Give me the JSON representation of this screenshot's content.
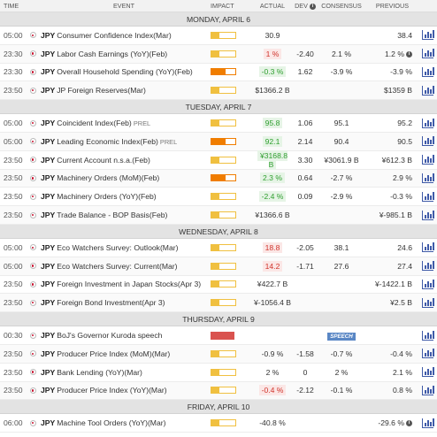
{
  "header": {
    "time": "TIME",
    "event": "EVENT",
    "impact": "IMPACT",
    "actual": "ACTUAL",
    "dev": "DEV",
    "consensus": "CONSENSUS",
    "previous": "PREVIOUS"
  },
  "days": [
    {
      "label": "MONDAY, APRIL 6",
      "events": [
        {
          "time": "05:00",
          "currency": "JPY",
          "name": "Consumer Confidence Index(Mar)",
          "prel": "",
          "impact": "low",
          "actual": "30.9",
          "actual_style": "",
          "dev": "",
          "consensus": "",
          "previous": "38.4",
          "prev_info": false,
          "speech": ""
        },
        {
          "time": "23:30",
          "currency": "JPY",
          "name": "Labor Cash Earnings (YoY)(Feb)",
          "prel": "",
          "impact": "low",
          "actual": "1 %",
          "actual_style": "red",
          "dev": "-2.40",
          "consensus": "2.1 %",
          "previous": "1.2 %",
          "prev_info": true,
          "speech": ""
        },
        {
          "time": "23:30",
          "currency": "JPY",
          "name": "Overall Household Spending (YoY)(Feb)",
          "prel": "",
          "impact": "med",
          "actual": "-0.3 %",
          "actual_style": "green",
          "dev": "1.62",
          "consensus": "-3.9 %",
          "previous": "-3.9 %",
          "prev_info": false,
          "speech": ""
        },
        {
          "time": "23:50",
          "currency": "JPY",
          "name": "JP Foreign Reserves(Mar)",
          "prel": "",
          "impact": "low",
          "actual": "$1366.2 B",
          "actual_style": "",
          "dev": "",
          "consensus": "",
          "previous": "$1359 B",
          "prev_info": false,
          "speech": ""
        }
      ]
    },
    {
      "label": "TUESDAY, APRIL 7",
      "events": [
        {
          "time": "05:00",
          "currency": "JPY",
          "name": "Coincident Index(Feb)",
          "prel": "PREL",
          "impact": "low",
          "actual": "95.8",
          "actual_style": "green",
          "dev": "1.06",
          "consensus": "95.1",
          "previous": "95.2",
          "prev_info": false,
          "speech": ""
        },
        {
          "time": "05:00",
          "currency": "JPY",
          "name": "Leading Economic Index(Feb)",
          "prel": "PREL",
          "impact": "med",
          "actual": "92.1",
          "actual_style": "green",
          "dev": "2.14",
          "consensus": "90.4",
          "previous": "90.5",
          "prev_info": false,
          "speech": ""
        },
        {
          "time": "23:50",
          "currency": "JPY",
          "name": "Current Account n.s.a.(Feb)",
          "prel": "",
          "impact": "low",
          "actual": "¥3168.8 B",
          "actual_style": "green",
          "dev": "3.30",
          "consensus": "¥3061.9 B",
          "previous": "¥612.3 B",
          "prev_info": false,
          "speech": ""
        },
        {
          "time": "23:50",
          "currency": "JPY",
          "name": "Machinery Orders (MoM)(Feb)",
          "prel": "",
          "impact": "med",
          "actual": "2.3 %",
          "actual_style": "green",
          "dev": "0.64",
          "consensus": "-2.7 %",
          "previous": "2.9 %",
          "prev_info": false,
          "speech": ""
        },
        {
          "time": "23:50",
          "currency": "JPY",
          "name": "Machinery Orders (YoY)(Feb)",
          "prel": "",
          "impact": "low",
          "actual": "-2.4 %",
          "actual_style": "green",
          "dev": "0.09",
          "consensus": "-2.9 %",
          "previous": "-0.3 %",
          "prev_info": false,
          "speech": ""
        },
        {
          "time": "23:50",
          "currency": "JPY",
          "name": "Trade Balance - BOP Basis(Feb)",
          "prel": "",
          "impact": "low",
          "actual": "¥1366.6 B",
          "actual_style": "",
          "dev": "",
          "consensus": "",
          "previous": "¥-985.1 B",
          "prev_info": false,
          "speech": ""
        }
      ]
    },
    {
      "label": "WEDNESDAY, APRIL 8",
      "events": [
        {
          "time": "05:00",
          "currency": "JPY",
          "name": "Eco Watchers Survey: Outlook(Mar)",
          "prel": "",
          "impact": "low",
          "actual": "18.8",
          "actual_style": "red",
          "dev": "-2.05",
          "consensus": "38.1",
          "previous": "24.6",
          "prev_info": false,
          "speech": ""
        },
        {
          "time": "05:00",
          "currency": "JPY",
          "name": "Eco Watchers Survey: Current(Mar)",
          "prel": "",
          "impact": "low",
          "actual": "14.2",
          "actual_style": "red",
          "dev": "-1.71",
          "consensus": "27.6",
          "previous": "27.4",
          "prev_info": false,
          "speech": ""
        },
        {
          "time": "23:50",
          "currency": "JPY",
          "name": "Foreign Investment in Japan Stocks(Apr 3)",
          "prel": "",
          "impact": "low",
          "actual": "¥422.7 B",
          "actual_style": "",
          "dev": "",
          "consensus": "",
          "previous": "¥-1422.1 B",
          "prev_info": false,
          "speech": ""
        },
        {
          "time": "23:50",
          "currency": "JPY",
          "name": "Foreign Bond Investment(Apr 3)",
          "prel": "",
          "impact": "low",
          "actual": "¥-1056.4 B",
          "actual_style": "",
          "dev": "",
          "consensus": "",
          "previous": "¥2.5 B",
          "prev_info": false,
          "speech": ""
        }
      ]
    },
    {
      "label": "THURSDAY, APRIL 9",
      "events": [
        {
          "time": "00:30",
          "currency": "JPY",
          "name": "BoJ's Governor Kuroda speech",
          "prel": "",
          "impact": "high",
          "actual": "",
          "actual_style": "",
          "dev": "",
          "consensus": "SPEECH",
          "previous": "",
          "prev_info": false,
          "speech": "SPEECH"
        },
        {
          "time": "23:50",
          "currency": "JPY",
          "name": "Producer Price Index (MoM)(Mar)",
          "prel": "",
          "impact": "low",
          "actual": "-0.9 %",
          "actual_style": "",
          "dev": "-1.58",
          "consensus": "-0.7 %",
          "previous": "-0.4 %",
          "prev_info": false,
          "speech": ""
        },
        {
          "time": "23:50",
          "currency": "JPY",
          "name": "Bank Lending (YoY)(Mar)",
          "prel": "",
          "impact": "low",
          "actual": "2 %",
          "actual_style": "",
          "dev": "0",
          "consensus": "2 %",
          "previous": "2.1 %",
          "prev_info": false,
          "speech": ""
        },
        {
          "time": "23:50",
          "currency": "JPY",
          "name": "Producer Price Index (YoY)(Mar)",
          "prel": "",
          "impact": "low",
          "actual": "-0.4 %",
          "actual_style": "red",
          "dev": "-2.12",
          "consensus": "-0.1 %",
          "previous": "0.8 %",
          "prev_info": false,
          "speech": ""
        }
      ]
    },
    {
      "label": "FRIDAY, APRIL 10",
      "events": [
        {
          "time": "06:00",
          "currency": "JPY",
          "name": "Machine Tool Orders (YoY)(Mar)",
          "prel": "",
          "impact": "low",
          "actual": "-40.8 %",
          "actual_style": "",
          "dev": "",
          "consensus": "",
          "previous": "-29.6 %",
          "prev_info": true,
          "speech": ""
        }
      ]
    }
  ],
  "icons": {
    "flag": "japan-flag-icon",
    "chart": "bar-chart-icon",
    "info": "info-icon"
  },
  "colors": {
    "green": "#2e9e2e",
    "red": "#d0342c",
    "low": "#f0c040",
    "med": "#f07d00",
    "high": "#d9534f",
    "speech": "#5a87c5"
  }
}
